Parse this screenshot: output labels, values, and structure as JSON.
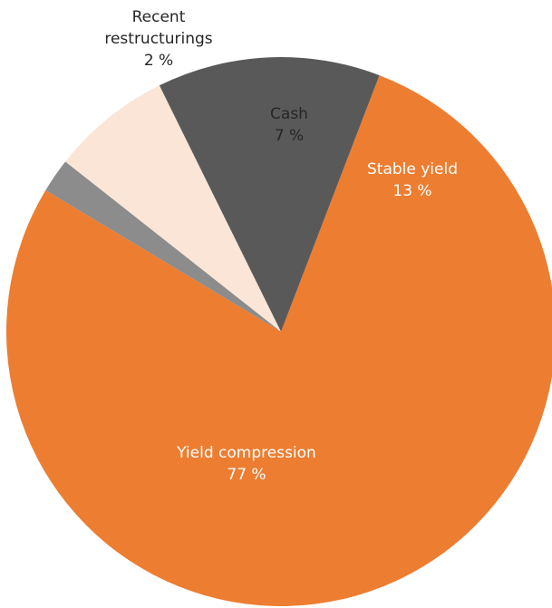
{
  "chart_data": {
    "type": "pie",
    "slices": [
      {
        "label": "Yield compression",
        "value": 77,
        "value_label": "77 %",
        "color": "#ED7D31",
        "text_color": "#ffffff"
      },
      {
        "label": "Recent restructurings",
        "value": 2,
        "value_label": "2 %",
        "color": "#8C8C8C",
        "text_color": "#262626",
        "label_lines": [
          "Recent",
          "restructurings"
        ]
      },
      {
        "label": "Cash",
        "value": 7,
        "value_label": "7 %",
        "color": "#FBE5D6",
        "text_color": "#262626"
      },
      {
        "label": "Stable yield",
        "value": 13,
        "value_label": "13 %",
        "color": "#595959",
        "text_color": "#ffffff"
      }
    ],
    "legend": "none",
    "title": ""
  }
}
